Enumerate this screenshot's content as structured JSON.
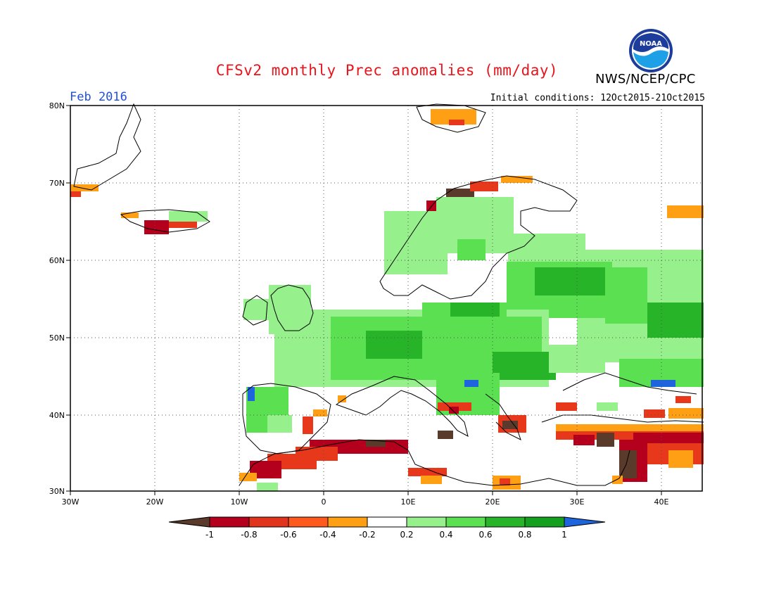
{
  "header": {
    "title": "CFSv2 monthly Prec anomalies (mm/day)",
    "agency": "NWS/NCEP/CPC",
    "month": "Feb 2016",
    "initial_conditions": "Initial conditions: 12Oct2015-21Oct2015",
    "logo_text": "NOAA"
  },
  "map": {
    "lon_range": [
      -30,
      45
    ],
    "lat_range": [
      30,
      80
    ],
    "lon_ticks": [
      "30W",
      "20W",
      "10W",
      "0",
      "10E",
      "20E",
      "30E",
      "40E"
    ],
    "lat_ticks": [
      "80N",
      "70N",
      "60N",
      "50N",
      "40N",
      "30N"
    ],
    "gridlines": "dotted"
  },
  "colorbar": {
    "labels": [
      "-1",
      "-0.8",
      "-0.6",
      "-0.4",
      "-0.2",
      "0.2",
      "0.4",
      "0.6",
      "0.8",
      "1"
    ],
    "colors": [
      "#5a3a2a",
      "#b4001c",
      "#e0341c",
      "#ff5a1e",
      "#ffa014",
      "#ffffff",
      "#96f08c",
      "#5ae050",
      "#28b428",
      "#14a01e",
      "#1e64dc"
    ]
  },
  "anomaly_colors": {
    "dry_extreme": "#5a3a2a",
    "dry_strong": "#b4001c",
    "dry_moderate": "#e8381c",
    "dry_weak": "#ffa014",
    "wet_weak": "#96f08c",
    "wet_moderate": "#5ae050",
    "wet_strong": "#28b428",
    "wet_extreme": "#1e64dc"
  }
}
